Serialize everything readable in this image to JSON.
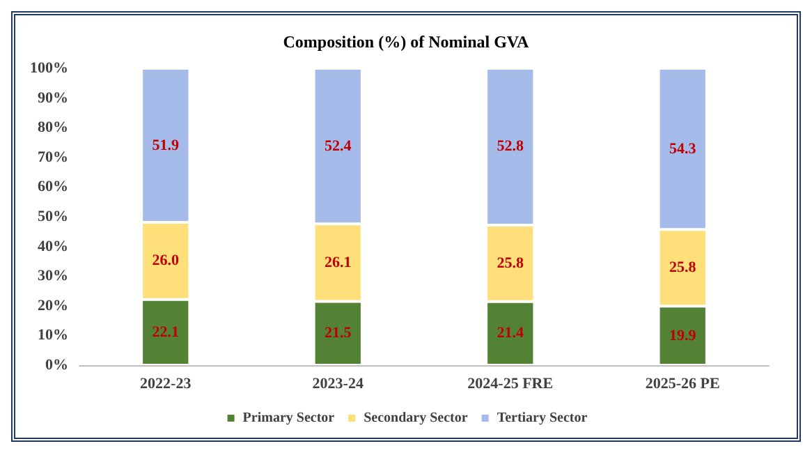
{
  "chart_data": {
    "type": "bar",
    "title": "Composition (%) of Nominal GVA",
    "stacked": true,
    "categories": [
      "2022-23",
      "2023-24",
      "2024-25 FRE",
      "2025-26 PE"
    ],
    "series": [
      {
        "name": "Primary Sector",
        "color": "#548235",
        "values": [
          22.1,
          21.5,
          21.4,
          19.9
        ],
        "value_labels": [
          "22.1",
          "21.5",
          "21.4",
          "19.9"
        ]
      },
      {
        "name": "Secondary Sector",
        "color": "#ffdf79",
        "values": [
          26.0,
          26.1,
          25.8,
          25.8
        ],
        "value_labels": [
          "26.0",
          "26.1",
          "25.8",
          "25.8"
        ]
      },
      {
        "name": "Tertiary Sector",
        "color": "#a5bbe9",
        "values": [
          51.9,
          52.4,
          52.8,
          54.3
        ],
        "value_labels": [
          "51.9",
          "52.4",
          "52.8",
          "54.3"
        ]
      }
    ],
    "ylim": [
      0,
      100
    ],
    "yticks": [
      {
        "value": 0,
        "label": "0%"
      },
      {
        "value": 10,
        "label": "10%"
      },
      {
        "value": 20,
        "label": "20%"
      },
      {
        "value": 30,
        "label": "30%"
      },
      {
        "value": 40,
        "label": "40%"
      },
      {
        "value": 50,
        "label": "50%"
      },
      {
        "value": 60,
        "label": "60%"
      },
      {
        "value": 70,
        "label": "70%"
      },
      {
        "value": 80,
        "label": "80%"
      },
      {
        "value": 90,
        "label": "90%"
      },
      {
        "value": 100,
        "label": "100%"
      }
    ],
    "grid": false,
    "legend": "bottom"
  }
}
